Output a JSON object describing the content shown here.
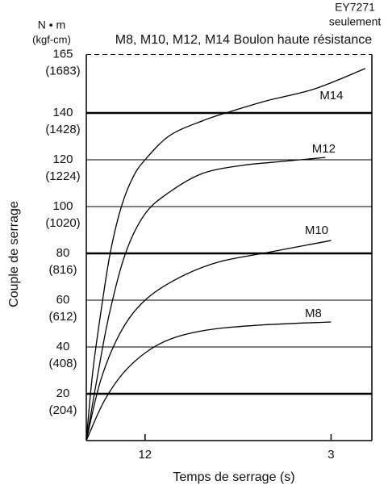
{
  "chart_data": {
    "type": "line",
    "title": "M8, M10, M12, M14 Boulon haute résistance",
    "model": "EY7271",
    "model_note": "seulement",
    "y_unit": "N • m",
    "y_unit_alt": "(kgf-cm)",
    "ylabel": "Couple de serrage",
    "xlabel": "Temps de serrage (s)",
    "xlim": [
      0,
      3.5
    ],
    "ylim": [
      0,
      165
    ],
    "xticks": [
      {
        "value": 0.72,
        "label": "12"
      },
      3
    ],
    "yticks": [
      20,
      40,
      60,
      80,
      100,
      120,
      140,
      165
    ],
    "ytick_sublabels": [
      "(204)",
      "(408)",
      "(612)",
      "(816)",
      "(1020)",
      "(1224)",
      "(1428)",
      "(1683)"
    ],
    "ytick_styles": [
      "bold",
      "thin",
      "thin",
      "bold",
      "thin",
      "thin",
      "bold",
      "dashed"
    ],
    "color": "#000000",
    "series": [
      {
        "name": "M14",
        "x": [
          0,
          0.08,
          0.2,
          0.3,
          0.43,
          0.57,
          0.72,
          1.02,
          1.42,
          1.71,
          2.21,
          2.8,
          3.42
        ],
        "values": [
          0,
          29.7,
          60,
          81.4,
          100,
          112.4,
          120,
          130.3,
          136.6,
          140,
          145.2,
          150.3,
          159
        ]
      },
      {
        "name": "M12",
        "x": [
          0,
          0.13,
          0.28,
          0.48,
          0.72,
          1.02,
          1.42,
          1.91,
          2.41,
          2.93
        ],
        "values": [
          0,
          26.2,
          53.8,
          80,
          96.9,
          106.2,
          114.1,
          117.6,
          119.3,
          121
        ]
      },
      {
        "name": "M10",
        "x": [
          0,
          0.18,
          0.43,
          0.72,
          1.12,
          1.61,
          2.21,
          3.0
        ],
        "values": [
          0,
          26.2,
          46.9,
          60,
          69.3,
          76.2,
          80.3,
          85.5
        ]
      },
      {
        "name": "M8",
        "x": [
          0,
          0.23,
          0.52,
          0.92,
          1.42,
          2.11,
          3.0
        ],
        "values": [
          0,
          17.6,
          31.4,
          41.7,
          46.9,
          49.3,
          50.7
        ]
      }
    ]
  }
}
